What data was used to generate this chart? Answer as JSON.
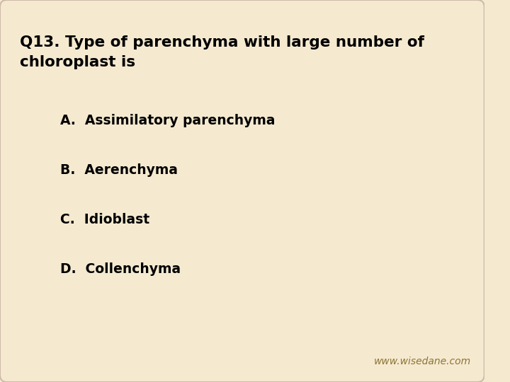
{
  "background_color": "#f5ead0",
  "card_color": "#f5ead0",
  "question": "Q13. Type of parenchyma with large number of\nchloroplast is",
  "options": [
    "A.  Assimilatory parenchyma",
    "B.  Aerenchyma",
    "C.  Idioblast",
    "D.  Collenchyma"
  ],
  "text_color": "#000000",
  "website": "www.wisedane.com",
  "website_color": "#8B7536",
  "question_fontsize": 15.5,
  "option_fontsize": 13.5,
  "website_fontsize": 10
}
